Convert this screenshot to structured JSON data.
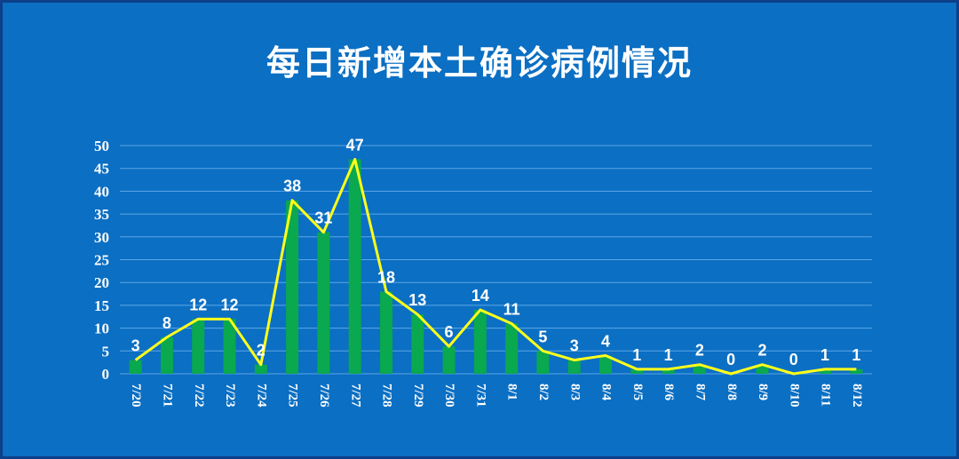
{
  "chart_data": {
    "type": "bar",
    "title": "每日新增本土确诊病例情况",
    "categories": [
      "7/20",
      "7/21",
      "7/22",
      "7/23",
      "7/24",
      "7/25",
      "7/26",
      "7/27",
      "7/28",
      "7/29",
      "7/30",
      "7/31",
      "8/1",
      "8/2",
      "8/3",
      "8/4",
      "8/5",
      "8/6",
      "8/7",
      "8/8",
      "8/9",
      "8/10",
      "8/11",
      "8/12"
    ],
    "series": [
      {
        "type": "bar",
        "values": [
          3,
          8,
          12,
          12,
          2,
          38,
          31,
          47,
          18,
          13,
          6,
          14,
          11,
          5,
          3,
          4,
          1,
          1,
          2,
          0,
          2,
          0,
          1,
          1
        ]
      },
      {
        "type": "line",
        "values": [
          3,
          8,
          12,
          12,
          2,
          38,
          31,
          47,
          18,
          13,
          6,
          14,
          11,
          5,
          3,
          4,
          1,
          1,
          2,
          0,
          2,
          0,
          1,
          1
        ]
      }
    ],
    "ylim": [
      0,
      50
    ],
    "yticks": [
      0,
      5,
      10,
      15,
      20,
      25,
      30,
      35,
      40,
      45,
      50
    ],
    "grid": true,
    "colors": {
      "bar": "#0aa84f",
      "line": "#ffff1a",
      "grid": "#5da6e6"
    }
  }
}
